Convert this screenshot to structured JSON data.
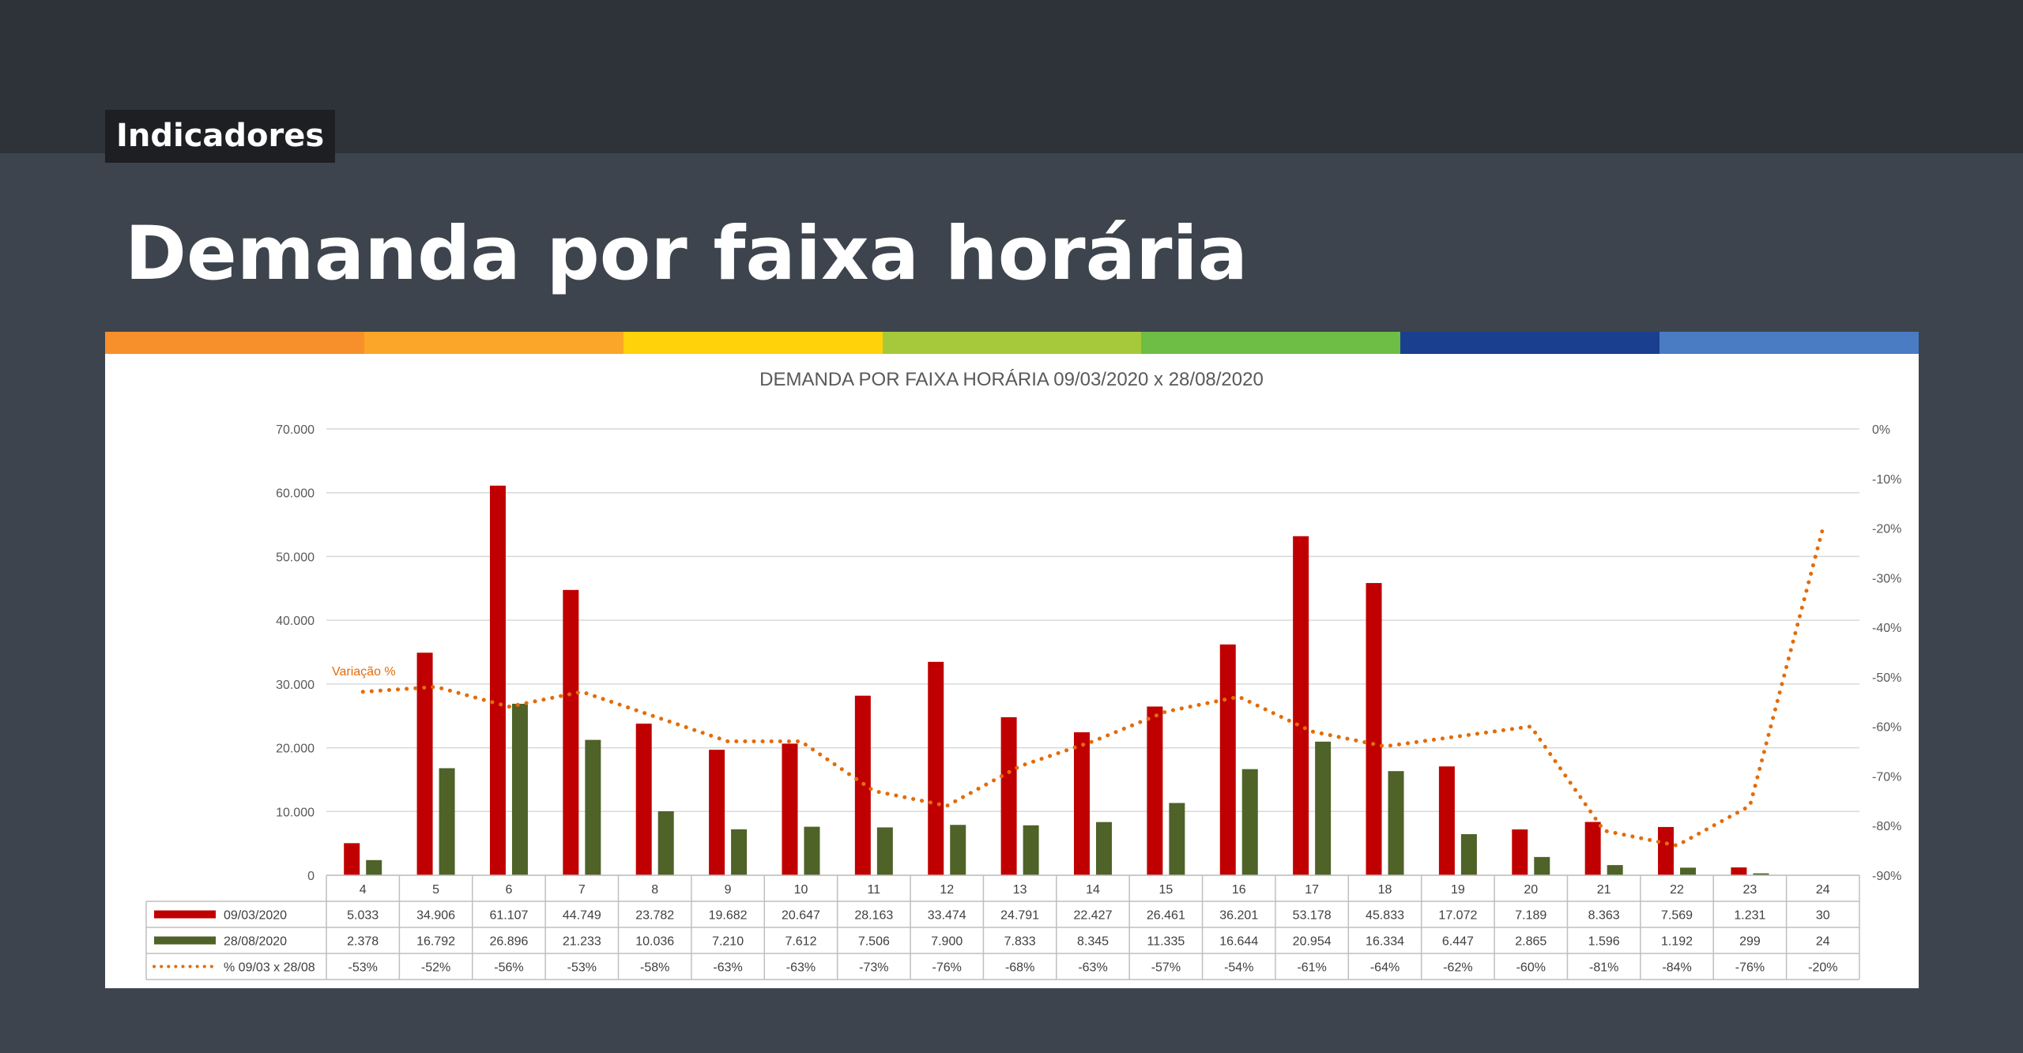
{
  "header": {
    "tag": "Indicadores",
    "title": "Demanda por faixa horária"
  },
  "color_strip": [
    "#f7902a",
    "#fba628",
    "#ffd20a",
    "#a5c93a",
    "#6ebd45",
    "#1a3f8f",
    "#4a7cc4"
  ],
  "chart_data": {
    "type": "bar",
    "title": "DEMANDA POR FAIXA HORÁRIA 09/03/2020 x 28/08/2020",
    "categories": [
      "4",
      "5",
      "6",
      "7",
      "8",
      "9",
      "10",
      "11",
      "12",
      "13",
      "14",
      "15",
      "16",
      "17",
      "18",
      "19",
      "20",
      "21",
      "22",
      "23",
      "24"
    ],
    "ylim": [
      0,
      70000
    ],
    "y_ticks": [
      "0",
      "10.000",
      "20.000",
      "30.000",
      "40.000",
      "50.000",
      "60.000",
      "70.000"
    ],
    "y2lim": [
      -90,
      0
    ],
    "y2_ticks": [
      "-90%",
      "-80%",
      "-70%",
      "-60%",
      "-50%",
      "-40%",
      "-30%",
      "-20%",
      "-10%",
      "0%"
    ],
    "annotation": "Variação %",
    "series": [
      {
        "name": "09/03/2020",
        "type": "bar",
        "color": "#c00000",
        "values": [
          5033,
          34906,
          61107,
          44749,
          23782,
          19682,
          20647,
          28163,
          33474,
          24791,
          22427,
          26461,
          36201,
          53178,
          45833,
          17072,
          7189,
          8363,
          7569,
          1231,
          30
        ],
        "labels": [
          "5.033",
          "34.906",
          "61.107",
          "44.749",
          "23.782",
          "19.682",
          "20.647",
          "28.163",
          "33.474",
          "24.791",
          "22.427",
          "26.461",
          "36.201",
          "53.178",
          "45.833",
          "17.072",
          "7.189",
          "8.363",
          "7.569",
          "1.231",
          "30"
        ]
      },
      {
        "name": "28/08/2020",
        "type": "bar",
        "color": "#4f6228",
        "values": [
          2378,
          16792,
          26896,
          21233,
          10036,
          7210,
          7612,
          7506,
          7900,
          7833,
          8345,
          11335,
          16644,
          20954,
          16334,
          6447,
          2865,
          1596,
          1192,
          299,
          24
        ],
        "labels": [
          "2.378",
          "16.792",
          "26.896",
          "21.233",
          "10.036",
          "7.210",
          "7.612",
          "7.506",
          "7.900",
          "7.833",
          "8.345",
          "11.335",
          "16.644",
          "20.954",
          "16.334",
          "6.447",
          "2.865",
          "1.596",
          "1.192",
          "299",
          "24"
        ]
      },
      {
        "name": "% 09/03 x 28/08",
        "type": "line",
        "axis": "right",
        "color": "#e36c0a",
        "values": [
          -53,
          -52,
          -56,
          -53,
          -58,
          -63,
          -63,
          -73,
          -76,
          -68,
          -63,
          -57,
          -54,
          -61,
          -64,
          -62,
          -60,
          -81,
          -84,
          -76,
          -20
        ],
        "labels": [
          "-53%",
          "-52%",
          "-56%",
          "-53%",
          "-58%",
          "-63%",
          "-63%",
          "-73%",
          "-76%",
          "-68%",
          "-63%",
          "-57%",
          "-54%",
          "-61%",
          "-64%",
          "-62%",
          "-60%",
          "-81%",
          "-84%",
          "-76%",
          "-20%"
        ]
      }
    ]
  }
}
